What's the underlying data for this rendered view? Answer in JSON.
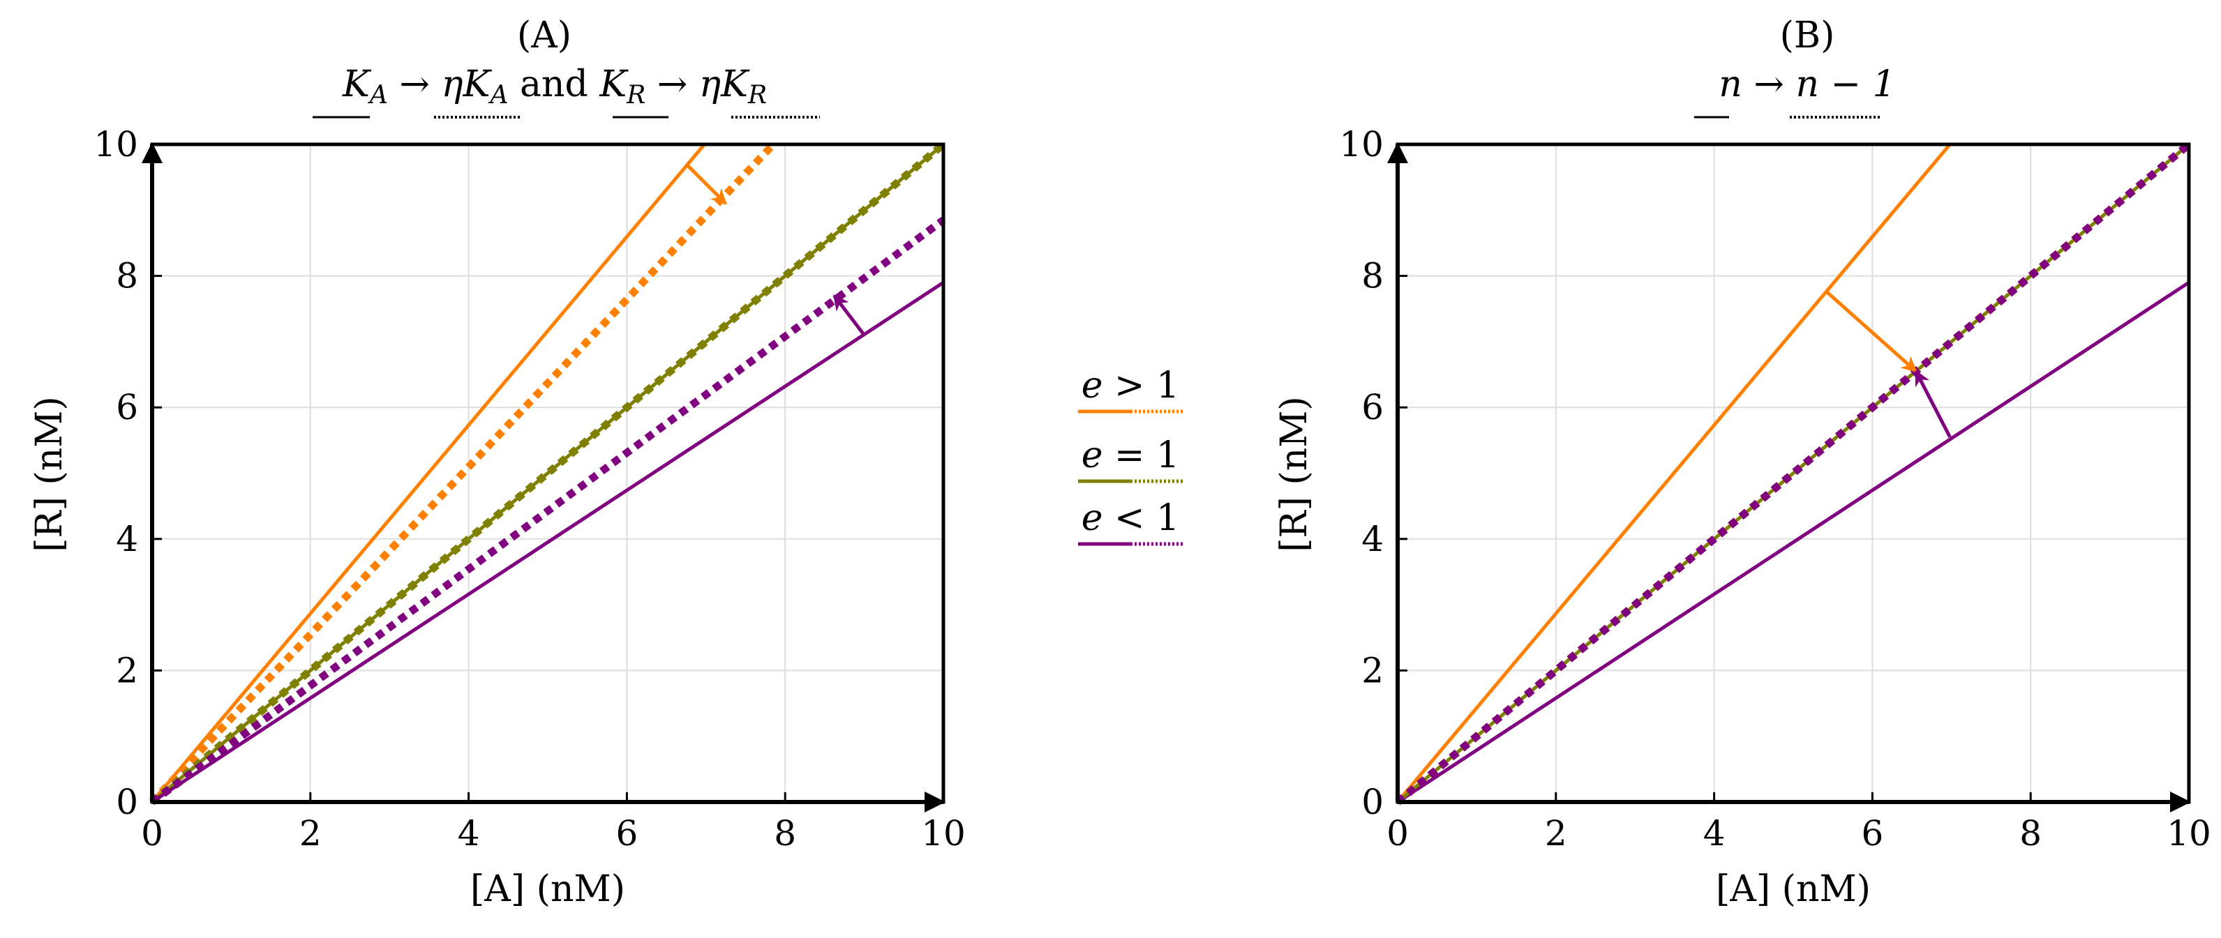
{
  "chart_data": [
    {
      "type": "line",
      "panel_label": "(A)",
      "subtitle": {
        "left": "K",
        "left_sub": "A",
        "arrow": " → ",
        "eta_left": "ηK",
        "eta_left_sub": "A",
        "and": " and ",
        "right": "K",
        "right_sub": "R",
        "eta_right": "ηK",
        "eta_right_sub": "R"
      },
      "xlabel": "[A] (nM)",
      "ylabel": "[R] (nM)",
      "xlim": [
        0,
        10
      ],
      "ylim": [
        0,
        10
      ],
      "xticks": [
        "0",
        "2",
        "4",
        "6",
        "8",
        "10"
      ],
      "yticks": [
        "0",
        "2",
        "4",
        "6",
        "8",
        "10"
      ],
      "series": [
        {
          "name": "e > 1 (solid)",
          "style": "solid",
          "color": "#ff8000",
          "points": [
            [
              0,
              0
            ],
            [
              6.98,
              10
            ]
          ]
        },
        {
          "name": "e > 1 (dotted)",
          "style": "dotted",
          "color": "#ff8000",
          "points": [
            [
              0,
              0
            ],
            [
              7.85,
              10
            ]
          ]
        },
        {
          "name": "e = 1 (solid)",
          "style": "solid",
          "color": "#808000",
          "points": [
            [
              0,
              0
            ],
            [
              10,
              10
            ]
          ]
        },
        {
          "name": "e = 1 (dotted)",
          "style": "dotted",
          "color": "#808000",
          "points": [
            [
              0,
              0
            ],
            [
              10,
              10
            ]
          ]
        },
        {
          "name": "e < 1 (dotted)",
          "style": "dotted",
          "color": "#800080",
          "points": [
            [
              0,
              0
            ],
            [
              10,
              8.85
            ]
          ]
        },
        {
          "name": "e < 1 (solid)",
          "style": "solid",
          "color": "#800080",
          "points": [
            [
              0,
              0
            ],
            [
              10,
              7.9
            ]
          ]
        }
      ],
      "annotations": [
        {
          "type": "arrow",
          "color": "#ff8000",
          "from": [
            6.75,
            9.7
          ],
          "to": [
            7.25,
            9.1
          ]
        },
        {
          "type": "arrow",
          "color": "#800080",
          "from": [
            9.0,
            7.1
          ],
          "to": [
            8.62,
            7.7
          ]
        }
      ]
    },
    {
      "type": "line",
      "panel_label": "(B)",
      "subtitle": {
        "left": "n",
        "arrow": " → ",
        "right": "n − 1"
      },
      "xlabel": "[A] (nM)",
      "ylabel": "[R] (nM)",
      "xlim": [
        0,
        10
      ],
      "ylim": [
        0,
        10
      ],
      "xticks": [
        "0",
        "2",
        "4",
        "6",
        "8",
        "10"
      ],
      "yticks": [
        "0",
        "2",
        "4",
        "6",
        "8",
        "10"
      ],
      "series": [
        {
          "name": "e > 1 (solid)",
          "style": "solid",
          "color": "#ff8000",
          "points": [
            [
              0,
              0
            ],
            [
              6.98,
              10
            ]
          ]
        },
        {
          "name": "e < 1 (solid)",
          "style": "solid",
          "color": "#800080",
          "points": [
            [
              0,
              0
            ],
            [
              10,
              7.9
            ]
          ]
        },
        {
          "name": "e > 1 (dotted)",
          "style": "dotted",
          "color": "#ff8000",
          "points": [
            [
              0,
              0
            ],
            [
              10,
              10
            ]
          ]
        },
        {
          "name": "e = 1 (solid)",
          "style": "solid",
          "color": "#808000",
          "points": [
            [
              0,
              0
            ],
            [
              10,
              10
            ]
          ]
        },
        {
          "name": "e < 1 (dotted)",
          "style": "dotted",
          "color": "#800080",
          "points": [
            [
              0,
              0
            ],
            [
              10,
              10
            ]
          ]
        }
      ],
      "annotations": [
        {
          "type": "arrow",
          "color": "#ff8000",
          "from": [
            5.42,
            7.76
          ],
          "to": [
            6.55,
            6.55
          ]
        },
        {
          "type": "arrow",
          "color": "#800080",
          "from": [
            6.98,
            5.55
          ],
          "to": [
            6.55,
            6.55
          ]
        }
      ]
    }
  ],
  "legend": [
    {
      "label": "e > 1",
      "var": "e",
      "rel": " > 1",
      "color": "#ff8000"
    },
    {
      "label": "e = 1",
      "var": "e",
      "rel": " = 1",
      "color": "#808000"
    },
    {
      "label": "e < 1",
      "var": "e",
      "rel": " < 1",
      "color": "#800080"
    }
  ]
}
